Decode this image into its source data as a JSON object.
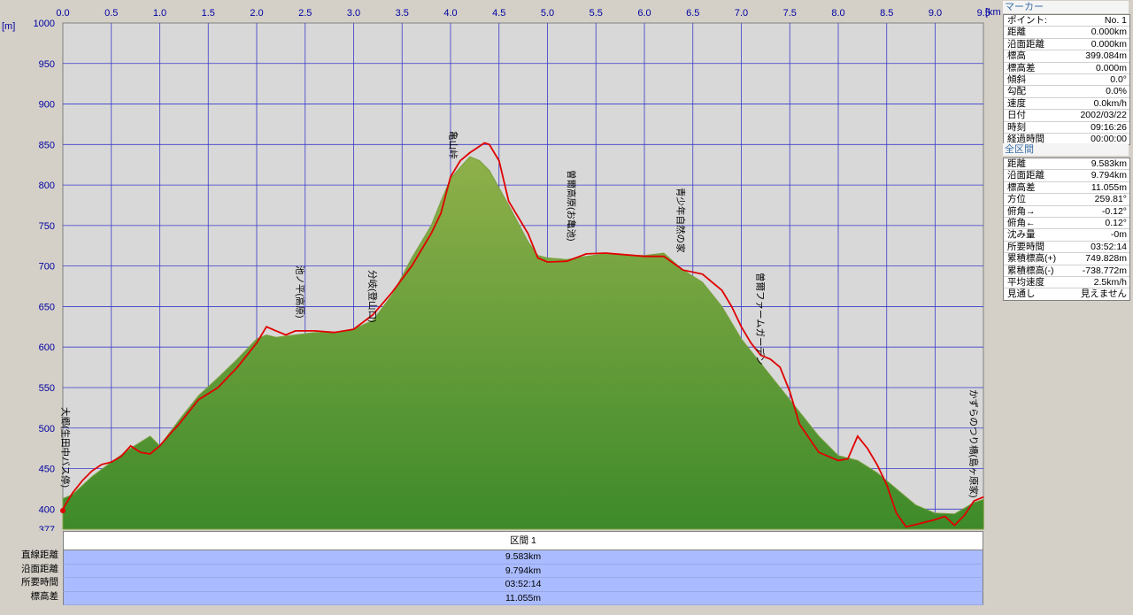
{
  "chart_data": {
    "type": "area",
    "x_unit": "[km]",
    "y_unit": "[m]",
    "xlim": [
      0,
      9.5
    ],
    "ylim": [
      377,
      1000
    ],
    "x_ticks": [
      "0.0",
      "0.5",
      "1.0",
      "1.5",
      "2.0",
      "2.5",
      "3.0",
      "3.5",
      "4.0",
      "4.5",
      "5.0",
      "5.5",
      "6.0",
      "6.5",
      "7.0",
      "7.5",
      "8.0",
      "8.5",
      "9.0",
      "9.5"
    ],
    "y_ticks": [
      "1000",
      "950",
      "900",
      "850",
      "800",
      "750",
      "700",
      "650",
      "600",
      "550",
      "500",
      "450",
      "400",
      "377"
    ],
    "grid": true,
    "series": [
      {
        "name": "",
        "color": "#6a9a38",
        "x": [
          0,
          0.1,
          0.3,
          0.5,
          0.7,
          0.9,
          1.0,
          1.2,
          1.4,
          1.6,
          1.8,
          2.0,
          2.1,
          2.2,
          2.4,
          2.6,
          2.8,
          3.0,
          3.2,
          3.4,
          3.6,
          3.8,
          3.9,
          4.0,
          4.1,
          4.2,
          4.3,
          4.4,
          4.6,
          4.8,
          4.9,
          5.0,
          5.2,
          5.4,
          5.6,
          5.8,
          6.0,
          6.2,
          6.4,
          6.6,
          6.8,
          7.0,
          7.2,
          7.4,
          7.6,
          7.8,
          8.0,
          8.2,
          8.4,
          8.6,
          8.8,
          9.0,
          9.2,
          9.4,
          9.5
        ],
        "values": [
          413,
          418,
          440,
          458,
          475,
          490,
          478,
          510,
          540,
          562,
          585,
          610,
          615,
          612,
          615,
          618,
          618,
          622,
          633,
          665,
          710,
          750,
          780,
          808,
          822,
          835,
          830,
          818,
          775,
          730,
          713,
          710,
          708,
          712,
          715,
          713,
          713,
          716,
          695,
          680,
          650,
          610,
          580,
          550,
          520,
          490,
          466,
          460,
          445,
          425,
          405,
          395,
          394,
          408,
          412
        ]
      },
      {
        "name": "",
        "color": "#e00000",
        "x": [
          0,
          0.1,
          0.2,
          0.3,
          0.4,
          0.5,
          0.6,
          0.7,
          0.8,
          0.9,
          1.0,
          1.1,
          1.2,
          1.4,
          1.6,
          1.8,
          2.0,
          2.1,
          2.2,
          2.3,
          2.4,
          2.6,
          2.8,
          3.0,
          3.2,
          3.4,
          3.6,
          3.8,
          3.9,
          4.0,
          4.1,
          4.2,
          4.3,
          4.35,
          4.4,
          4.5,
          4.6,
          4.8,
          4.9,
          5.0,
          5.2,
          5.4,
          5.6,
          5.8,
          6.0,
          6.2,
          6.4,
          6.6,
          6.7,
          6.8,
          6.9,
          7.0,
          7.1,
          7.2,
          7.3,
          7.4,
          7.5,
          7.6,
          7.8,
          8.0,
          8.1,
          8.2,
          8.3,
          8.4,
          8.5,
          8.6,
          8.7,
          8.8,
          9.0,
          9.1,
          9.2,
          9.3,
          9.4,
          9.5
        ],
        "values": [
          400,
          420,
          435,
          447,
          455,
          458,
          465,
          478,
          470,
          468,
          478,
          492,
          505,
          535,
          550,
          575,
          605,
          625,
          620,
          615,
          620,
          620,
          618,
          622,
          640,
          668,
          700,
          740,
          765,
          810,
          830,
          840,
          848,
          852,
          850,
          830,
          780,
          740,
          710,
          705,
          706,
          715,
          716,
          714,
          712,
          712,
          695,
          690,
          680,
          670,
          650,
          625,
          605,
          590,
          585,
          575,
          545,
          505,
          470,
          460,
          462,
          490,
          475,
          455,
          430,
          395,
          378,
          381,
          387,
          391,
          380,
          392,
          410,
          415
        ]
      }
    ],
    "annotations": [
      {
        "text": "大郷(生田中バス停)",
        "x": 0.03
      },
      {
        "text": "池ノ平(高原)",
        "x": 2.45
      },
      {
        "text": "分岐(登山口)",
        "x": 3.2
      },
      {
        "text": "亀山峠",
        "x": 4.03
      },
      {
        "text": "曽爾高原(お亀池)",
        "x": 5.25
      },
      {
        "text": "青少年自然の家",
        "x": 6.38
      },
      {
        "text": "曽爾ファームガーデン",
        "x": 7.2
      },
      {
        "text": "かずらのつり橋(島ヶ原家)",
        "x": 9.4
      }
    ]
  },
  "marker_panel": {
    "title": "マーカー",
    "rows": [
      {
        "label": "ポイント:",
        "value": "No. 1"
      },
      {
        "label": "距離",
        "value": "0.000km"
      },
      {
        "label": "沿面距離",
        "value": "0.000km"
      },
      {
        "label": "標高",
        "value": "399.084m"
      },
      {
        "label": "標高差",
        "value": "0.000m"
      },
      {
        "label": "傾斜",
        "value": "0.0°"
      },
      {
        "label": "勾配",
        "value": "0.0%"
      },
      {
        "label": "速度",
        "value": "0.0km/h"
      },
      {
        "label": "日付",
        "value": "2002/03/22"
      },
      {
        "label": "時刻",
        "value": "09:16:26"
      },
      {
        "label": "経過時間",
        "value": "00:00:00"
      }
    ]
  },
  "total_panel": {
    "title": "全区間",
    "rows": [
      {
        "label": "距離",
        "value": "9.583km"
      },
      {
        "label": "沿面距離",
        "value": "9.794km"
      },
      {
        "label": "標高差",
        "value": "11.055m"
      },
      {
        "label": "方位",
        "value": "259.81°"
      },
      {
        "label": "俯角→",
        "value": "-0.12°"
      },
      {
        "label": "俯角←",
        "value": "0.12°"
      },
      {
        "label": "沈み量",
        "value": "-0m"
      },
      {
        "label": "所要時間",
        "value": "03:52:14"
      },
      {
        "label": "累積標高(+)",
        "value": "749.828m"
      },
      {
        "label": "累積標高(-)",
        "value": "-738.772m"
      },
      {
        "label": "平均速度",
        "value": "2.5km/h"
      },
      {
        "label": "見通し",
        "value": "見えません"
      }
    ]
  },
  "section_table": {
    "header": "区間 1",
    "rows": [
      {
        "label": "直線距離",
        "value": "9.583km"
      },
      {
        "label": "沿面距離",
        "value": "9.794km"
      },
      {
        "label": "所要時間",
        "value": "03:52:14"
      },
      {
        "label": "標高差",
        "value": "11.055m"
      }
    ]
  }
}
